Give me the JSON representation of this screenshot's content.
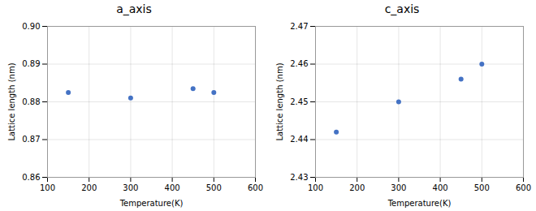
{
  "chart_data": [
    {
      "type": "scatter",
      "title": "a_axis",
      "x": [
        150,
        300,
        450,
        500
      ],
      "values": [
        0.8825,
        0.881,
        0.8835,
        0.8825
      ],
      "color": "#4472c4",
      "xlim": [
        100,
        600
      ],
      "xticks": [
        100,
        200,
        300,
        400,
        500,
        600
      ],
      "ylim": [
        0.86,
        0.9
      ],
      "yticks": [
        0.86,
        0.87,
        0.88,
        0.89,
        {
          "value": 0.9,
          "label": "0.90"
        }
      ],
      "xlabel": "Temperature(K)",
      "ylabel": "Lattice length (nm)",
      "grid": true
    },
    {
      "type": "scatter",
      "title": "c_axis",
      "x": [
        150,
        300,
        450,
        500
      ],
      "values": [
        2.442,
        2.45,
        2.456,
        2.46
      ],
      "color": "#4472c4",
      "xlim": [
        100,
        600
      ],
      "xticks": [
        100,
        200,
        300,
        400,
        500,
        600
      ],
      "ylim": [
        2.43,
        2.47
      ],
      "yticks": [
        2.43,
        2.44,
        2.45,
        2.46,
        2.47
      ],
      "xlabel": "Temperature(K)",
      "ylabel": "Lattice length (nm)",
      "grid": true
    }
  ]
}
